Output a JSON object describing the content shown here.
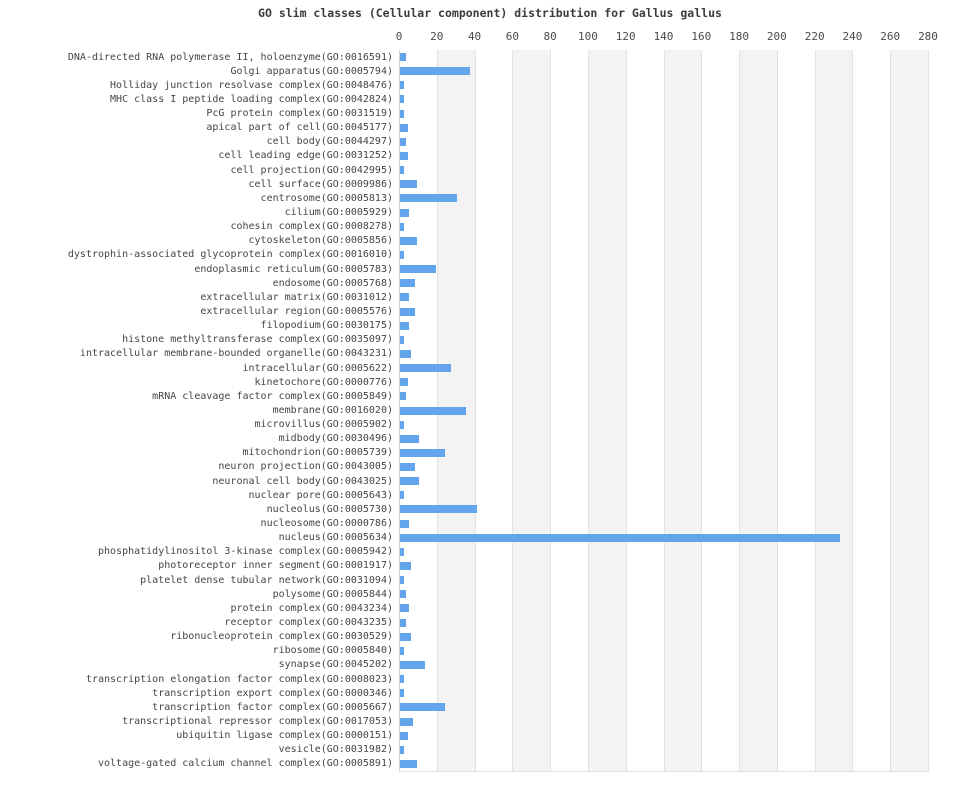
{
  "page": {
    "background": "#ffffff"
  },
  "chart_data": {
    "type": "bar",
    "orientation": "horizontal",
    "title": "GO slim classes (Cellular component) distribution for Gallus gallus",
    "xlabel": "",
    "ylabel": "",
    "xlim": [
      0,
      280
    ],
    "x_ticks": [
      0,
      20,
      40,
      60,
      80,
      100,
      120,
      140,
      160,
      180,
      200,
      220,
      240,
      260,
      280
    ],
    "grid": true,
    "legend": "none",
    "bar_color": "#62a5ec",
    "stripe_color": "#f3f3f3",
    "gridline_color": "#e1e1e1",
    "categories": [
      "DNA-directed RNA polymerase II, holoenzyme(GO:0016591)",
      "Golgi apparatus(GO:0005794)",
      "Holliday junction resolvase complex(GO:0048476)",
      "MHC class I peptide loading complex(GO:0042824)",
      "PcG protein complex(GO:0031519)",
      "apical part of cell(GO:0045177)",
      "cell body(GO:0044297)",
      "cell leading edge(GO:0031252)",
      "cell projection(GO:0042995)",
      "cell surface(GO:0009986)",
      "centrosome(GO:0005813)",
      "cilium(GO:0005929)",
      "cohesin complex(GO:0008278)",
      "cytoskeleton(GO:0005856)",
      "dystrophin-associated glycoprotein complex(GO:0016010)",
      "endoplasmic reticulum(GO:0005783)",
      "endosome(GO:0005768)",
      "extracellular matrix(GO:0031012)",
      "extracellular region(GO:0005576)",
      "filopodium(GO:0030175)",
      "histone methyltransferase complex(GO:0035097)",
      "intracellular membrane-bounded organelle(GO:0043231)",
      "intracellular(GO:0005622)",
      "kinetochore(GO:0000776)",
      "mRNA cleavage factor complex(GO:0005849)",
      "membrane(GO:0016020)",
      "microvillus(GO:0005902)",
      "midbody(GO:0030496)",
      "mitochondrion(GO:0005739)",
      "neuron projection(GO:0043005)",
      "neuronal cell body(GO:0043025)",
      "nuclear pore(GO:0005643)",
      "nucleolus(GO:0005730)",
      "nucleosome(GO:0000786)",
      "nucleus(GO:0005634)",
      "phosphatidylinositol 3-kinase complex(GO:0005942)",
      "photoreceptor inner segment(GO:0001917)",
      "platelet dense tubular network(GO:0031094)",
      "polysome(GO:0005844)",
      "protein complex(GO:0043234)",
      "receptor complex(GO:0043235)",
      "ribonucleoprotein complex(GO:0030529)",
      "ribosome(GO:0005840)",
      "synapse(GO:0045202)",
      "transcription elongation factor complex(GO:0008023)",
      "transcription export complex(GO:0000346)",
      "transcription factor complex(GO:0005667)",
      "transcriptional repressor complex(GO:0017053)",
      "ubiquitin ligase complex(GO:0000151)",
      "vesicle(GO:0031982)",
      "voltage-gated calcium channel complex(GO:0005891)"
    ],
    "values": [
      3,
      37,
      2,
      2,
      2,
      4,
      3,
      4,
      2,
      9,
      30,
      5,
      2,
      9,
      2,
      19,
      8,
      5,
      8,
      5,
      2,
      6,
      27,
      4,
      3,
      35,
      2,
      10,
      24,
      8,
      10,
      2,
      41,
      5,
      233,
      2,
      6,
      2,
      3,
      5,
      3,
      6,
      2,
      13,
      2,
      2,
      24,
      7,
      4,
      2,
      9
    ]
  }
}
